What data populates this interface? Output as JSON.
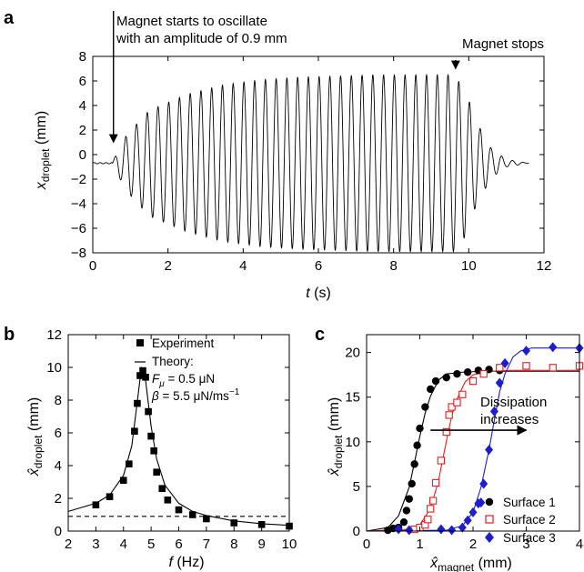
{
  "chart_data": [
    {
      "panel_label": "a",
      "type": "line",
      "xlabel": "t (s)",
      "ylabel": "x_droplet (mm)",
      "xlabel_parts": [
        "t",
        " (s)"
      ],
      "ylabel_parts": [
        "x",
        "droplet",
        " (mm)"
      ],
      "xlim": [
        0,
        12
      ],
      "ylim": [
        -8,
        8
      ],
      "xticks": [
        0,
        2,
        4,
        6,
        8,
        10,
        12
      ],
      "yticks": [
        -8,
        -6,
        -4,
        -2,
        0,
        2,
        4,
        6,
        8
      ],
      "grid": false,
      "series": [
        {
          "oscillation_frequency_hz": 3.5,
          "baseline_mm": -0.7,
          "start_s": 0.52,
          "stop_s": 9.6,
          "end_s": 11.6,
          "envelope": {
            "x": [
              0.0,
              0.52,
              0.9,
              1.5,
              2.5,
              3.5,
              4.5,
              5.5,
              6.5,
              7.5,
              8.5,
              9.6,
              9.9,
              10.2,
              10.6,
              11.0,
              11.6
            ],
            "amplitude": [
              0.0,
              0.1,
              2.3,
              4.3,
              5.6,
              6.4,
              6.8,
              7.0,
              7.1,
              7.2,
              7.2,
              7.2,
              6.0,
              3.4,
              1.2,
              0.3,
              0.0
            ]
          }
        }
      ],
      "annotations": [
        {
          "text_lines": [
            "Magnet starts to oscillate",
            "with an amplitude of 0.9 mm"
          ],
          "arrow_x": 0.55,
          "arrow_y": 1.0
        },
        {
          "text_lines": [
            "Magnet stops"
          ],
          "arrow_x": 9.65,
          "arrow_y": 7.0
        }
      ]
    },
    {
      "panel_label": "b",
      "type": "scatter",
      "xlabel": "f (Hz)",
      "ylabel": "x̂_droplet (mm)",
      "xlabel_parts": [
        "f",
        " (Hz)"
      ],
      "ylabel_parts": [
        "x̂",
        "droplet",
        " (mm)"
      ],
      "xlim": [
        2,
        10
      ],
      "ylim": [
        0,
        12
      ],
      "xticks": [
        2,
        3,
        4,
        5,
        6,
        7,
        8,
        9,
        10
      ],
      "yticks": [
        0,
        2,
        4,
        6,
        8,
        10,
        12
      ],
      "grid": false,
      "legend_position": "top-center",
      "series": [
        {
          "name": "Experiment",
          "marker": "square",
          "x": [
            3.0,
            3.5,
            4.0,
            4.2,
            4.4,
            4.5,
            4.6,
            4.7,
            4.8,
            4.9,
            5.0,
            5.1,
            5.2,
            5.4,
            5.6,
            6.0,
            6.5,
            7.0,
            8.0,
            9.0,
            10.0
          ],
          "y": [
            1.6,
            2.1,
            3.1,
            4.1,
            6.1,
            7.8,
            9.5,
            9.8,
            9.4,
            7.3,
            5.8,
            4.9,
            3.6,
            2.6,
            1.9,
            1.3,
            1.0,
            0.75,
            0.5,
            0.4,
            0.3
          ]
        },
        {
          "name": "Theory:",
          "style": "solid-line",
          "x": [
            2.0,
            3.0,
            3.5,
            4.0,
            4.3,
            4.5,
            4.65,
            4.8,
            5.0,
            5.2,
            5.5,
            6.0,
            6.5,
            7.0,
            8.0,
            9.0,
            10.0
          ],
          "y": [
            1.2,
            1.7,
            2.2,
            3.4,
            5.2,
            7.9,
            10.0,
            9.2,
            6.4,
            4.4,
            2.8,
            1.7,
            1.2,
            0.95,
            0.62,
            0.45,
            0.35
          ]
        },
        {
          "style": "dashed-line",
          "x": [
            2,
            10
          ],
          "y": [
            0.9,
            0.9
          ]
        }
      ],
      "theory_params": [
        {
          "symbol": "F",
          "sub": "μ",
          "value": " = 0.5 μN"
        },
        {
          "symbol": "β",
          "sub": "",
          "value": " = 5.5 μN/ms",
          "sup": "−1"
        }
      ]
    },
    {
      "panel_label": "c",
      "type": "scatter",
      "xlabel": "x̂_magnet (mm)",
      "ylabel": "x̂_droplet (mm)",
      "xlabel_parts": [
        "x̂",
        "magnet",
        " (mm)"
      ],
      "ylabel_parts": [
        "x̂",
        "droplet",
        " (mm)"
      ],
      "xlim": [
        0,
        4
      ],
      "ylim": [
        0,
        22
      ],
      "xticks": [
        0,
        1,
        2,
        3,
        4
      ],
      "yticks": [
        0,
        5,
        10,
        15,
        20
      ],
      "grid": false,
      "legend_position": "bottom-right",
      "series": [
        {
          "name": "Surface 1",
          "marker": "circle-filled",
          "color": "#000000",
          "x": [
            0.4,
            0.5,
            0.6,
            0.7,
            0.75,
            0.8,
            0.85,
            0.9,
            0.95,
            1.0,
            1.1,
            1.2,
            1.3,
            1.5,
            1.7,
            1.9,
            2.1,
            2.3,
            2.5
          ],
          "y": [
            0.1,
            0.3,
            0.4,
            1.0,
            2.3,
            3.6,
            5.3,
            7.5,
            9.6,
            11.5,
            13.9,
            15.9,
            16.8,
            17.2,
            17.6,
            17.8,
            18.0,
            18.1,
            18.0
          ],
          "fit": {
            "x": [
              0.0,
              0.4,
              0.6,
              0.8,
              0.9,
              1.0,
              1.1,
              1.2,
              1.35,
              1.5,
              1.8,
              2.2,
              3.0,
              4.0
            ],
            "y": [
              0.0,
              0.4,
              1.7,
              4.9,
              7.7,
              10.6,
              13.2,
              15.1,
              16.9,
              17.6,
              17.8,
              17.9,
              17.9,
              17.9
            ]
          }
        },
        {
          "name": "Surface 2",
          "marker": "square-open",
          "color": "#e02020",
          "x": [
            0.9,
            1.0,
            1.1,
            1.15,
            1.2,
            1.25,
            1.3,
            1.4,
            1.5,
            1.55,
            1.6,
            1.7,
            1.8,
            2.0,
            2.2,
            2.5,
            3.0,
            3.5,
            4.0
          ],
          "y": [
            0.2,
            0.4,
            0.7,
            1.3,
            2.5,
            3.4,
            5.4,
            7.9,
            11.1,
            13.0,
            13.9,
            14.4,
            15.3,
            16.8,
            17.6,
            18.3,
            18.5,
            18.3,
            18.5
          ],
          "fit": {
            "x": [
              0.0,
              0.8,
              1.0,
              1.2,
              1.35,
              1.5,
              1.6,
              1.7,
              1.85,
              2.0,
              2.3,
              2.7,
              3.2,
              4.0
            ],
            "y": [
              0.0,
              0.2,
              0.7,
              2.5,
              5.6,
              10.1,
              12.9,
              14.8,
              16.7,
              17.5,
              17.9,
              18.0,
              18.0,
              18.0
            ]
          }
        },
        {
          "name": "Surface 3",
          "marker": "diamond-filled",
          "color": "#1c1cd0",
          "x": [
            0.6,
            0.8,
            1.4,
            1.6,
            1.8,
            1.9,
            2.0,
            2.1,
            2.15,
            2.2,
            2.3,
            2.4,
            2.5,
            2.6,
            3.0,
            3.5,
            4.0
          ],
          "y": [
            0.2,
            0.1,
            0.2,
            0.1,
            0.4,
            1.2,
            2.1,
            3.1,
            3.2,
            5.3,
            9.1,
            13.4,
            16.6,
            18.8,
            20.2,
            20.6,
            20.5
          ],
          "fit": {
            "x": [
              0.0,
              1.5,
              1.8,
              2.0,
              2.15,
              2.3,
              2.4,
              2.5,
              2.6,
              2.75,
              2.9,
              3.1,
              3.4,
              4.0
            ],
            "y": [
              0.0,
              0.1,
              0.6,
              2.1,
              4.9,
              9.1,
              12.4,
              15.6,
              17.6,
              19.5,
              20.2,
              20.5,
              20.5,
              20.5
            ]
          }
        }
      ],
      "annotations": [
        {
          "text_lines": [
            "Dissipation",
            "increases"
          ],
          "arrow_from": [
            1.2,
            11.3
          ],
          "arrow_to": [
            3.0,
            11.3
          ]
        }
      ]
    }
  ]
}
